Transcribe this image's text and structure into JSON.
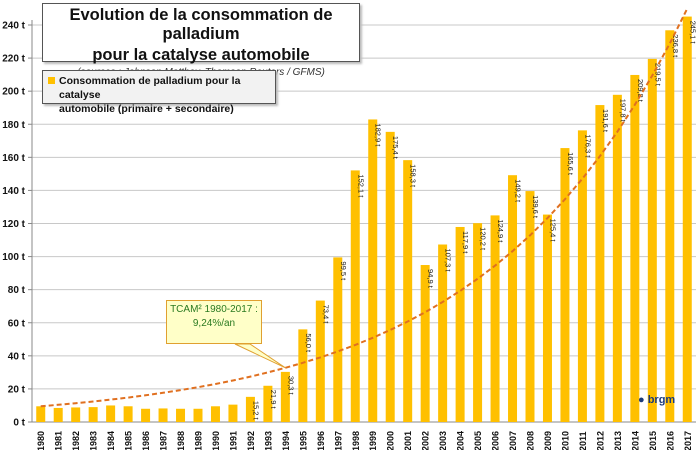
{
  "chart_data": {
    "type": "bar",
    "title": "Evolution de la consommation de palladium pour la catalyse automobile",
    "subtitle": "(sources : Johnson Matthey, Thomson Reuters / GFMS)",
    "categories": [
      "1980",
      "1981",
      "1982",
      "1983",
      "1984",
      "1985",
      "1986",
      "1987",
      "1988",
      "1989",
      "1990",
      "1991",
      "1992",
      "1993",
      "1994",
      "1995",
      "1996",
      "1997",
      "1998",
      "1999",
      "2000",
      "2001",
      "2002",
      "2003",
      "2004",
      "2005",
      "2006",
      "2007",
      "2008",
      "2009",
      "2010",
      "2011",
      "2012",
      "2013",
      "2014",
      "2015",
      "2016",
      "2017"
    ],
    "series": [
      {
        "name": "Consommation de palladium pour la catalyse automobile (primaire + secondaire)",
        "color": "#ffc000",
        "values": [
          9.5,
          8.5,
          8.8,
          9.0,
          10.0,
          9.5,
          8.0,
          8.2,
          8.0,
          8.0,
          9.5,
          10.5,
          15.2,
          21.9,
          30.3,
          56.0,
          73.4,
          99.5,
          152.1,
          182.9,
          175.4,
          158.3,
          94.9,
          107.3,
          117.9,
          120.2,
          124.9,
          149.2,
          139.6,
          125.4,
          165.6,
          176.3,
          191.6,
          197.8,
          209.8,
          219.5,
          236.8,
          245.1
        ],
        "labels": [
          "",
          "",
          "",
          "",
          "",
          "",
          "",
          "",
          "",
          "",
          "",
          "",
          "15,2 t",
          "21,9 t",
          "30,3 t",
          "56,0 t",
          "73,4 t",
          "99,5 t",
          "152,1 t",
          "182,9 t",
          "175,4 t",
          "158,3 t",
          "94,9 t",
          "107,3 t",
          "117,9 t",
          "120,2 t",
          "124,9 t",
          "149,2 t",
          "139,6 t",
          "125,4 t",
          "165,6 t",
          "176,3 t",
          "191,6 t",
          "197,8 t",
          "209,8 t",
          "219,5 t",
          "236,8 t",
          "245,1 t"
        ]
      }
    ],
    "trendline": {
      "type": "exponential",
      "color": "#e07020",
      "style": "dashed",
      "annotation_line1": "TCAM² 1980-2017 :",
      "annotation_line2": "9,24%/an",
      "annotation_color": "#2a7a20",
      "rate": 0.0924,
      "start_value": 9.5
    },
    "ylim": [
      0,
      250
    ],
    "yticks": [
      "0 t",
      "20 t",
      "40 t",
      "60 t",
      "80 t",
      "100 t",
      "120 t",
      "140 t",
      "160 t",
      "180 t",
      "200 t",
      "220 t",
      "240 t"
    ],
    "grid": true,
    "legend_position": "top-left"
  },
  "legend_text_1": "Consommation de palladium pour la catalyse",
  "legend_text_2": "automobile (primaire + secondaire)",
  "title_line1": "Evolution de la consommation de palladium",
  "title_line2": "pour la catalyse automobile",
  "logo_text": "brgm"
}
